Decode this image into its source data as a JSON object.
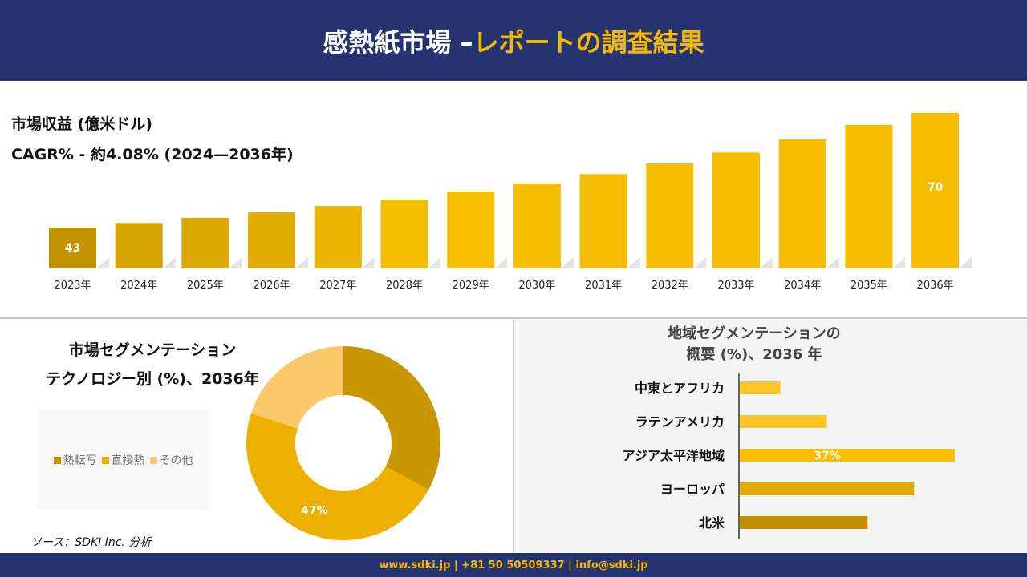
{
  "header": {
    "title_main": "感熱紙市場 –",
    "title_accent": "レポートの調査結果"
  },
  "revenue": {
    "label": "市場収益 (億米ドル)",
    "cagr": "CAGR% - 約4.08% (2024—2036年)"
  },
  "chart_data": [
    {
      "type": "bar",
      "title": "市場収益 (億米ドル)",
      "categories": [
        "2023年",
        "2024年",
        "2025年",
        "2026年",
        "2027年",
        "2028年",
        "2029年",
        "2030年",
        "2031年",
        "2032年",
        "2033年",
        "2034年",
        "2035年",
        "2036年"
      ],
      "values": [
        43,
        44.1,
        45.3,
        46.6,
        48.1,
        49.6,
        51.5,
        53.4,
        55.6,
        58.1,
        60.7,
        63.8,
        67.2,
        70
      ],
      "data_labels": {
        "0": "43",
        "13": "70"
      },
      "ylim": [
        33.4,
        70
      ],
      "grid": false,
      "colors": [
        "#c49400",
        "#d4a300",
        "#dba800",
        "#e2ac00",
        "#ebb400",
        "#f5bd00",
        "#f8c000",
        "#f7be00",
        "#f6bd00",
        "#f5bc00",
        "#f5bc00",
        "#f5bc00",
        "#f5bc00",
        "#f5bc00"
      ]
    },
    {
      "type": "pie",
      "title": "市場セグメンテーション テクノロジー別 (%)、2036年",
      "categories": [
        "熱転写",
        "直接熱",
        "その他"
      ],
      "values": [
        33,
        47,
        20
      ],
      "data_labels": {
        "1": "47%"
      },
      "colors": [
        "#c89700",
        "#edb000",
        "#fcc96a"
      ],
      "legend": "left"
    },
    {
      "type": "bar",
      "orientation": "horizontal",
      "title": "地域セグメンテーションの 概要 (%)、2036 年",
      "categories": [
        "中東とアフリカ",
        "ラテンアメリカ",
        "アジア太平洋地域",
        "ヨーロッパ",
        "北米"
      ],
      "values": [
        7,
        15,
        37,
        30,
        22
      ],
      "data_labels": {
        "2": "37%"
      },
      "colors": [
        "#fcc52a",
        "#fcc52a",
        "#fbbd00",
        "#e1aa00",
        "#c08e00"
      ]
    }
  ],
  "donut": {
    "title1": "市場セグメンテーション",
    "title2": "テクノロジー別 (%)、2036年"
  },
  "region": {
    "title1": "地域セグメンテーションの",
    "title2": "概要 (%)、2036 年"
  },
  "source": "ソース：SDKI Inc. 分析",
  "footer": "www.sdki.jp | +81 50 50509337 | info@sdki.jp"
}
